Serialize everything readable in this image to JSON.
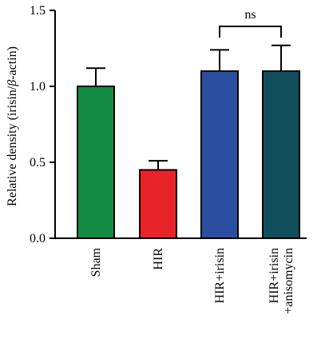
{
  "chart_data": {
    "type": "bar",
    "categories": [
      [
        "Sham"
      ],
      [
        "HIR"
      ],
      [
        "HIR+irisin"
      ],
      [
        "HIR+irisin",
        "+anisomycin"
      ]
    ],
    "values": [
      1.0,
      0.45,
      1.1,
      1.1
    ],
    "errors": [
      0.12,
      0.06,
      0.14,
      0.17
    ],
    "colors": [
      "#138a43",
      "#e8242a",
      "#2b4ea0",
      "#124f5c"
    ],
    "ylabel_main": "Relative density (irisin/",
    "ylabel_beta": "β",
    "ylabel_end": "-actin)",
    "ylim": [
      0,
      1.5
    ],
    "yticks": [
      "0.0",
      "0.5",
      "1.0",
      "1.5"
    ],
    "yticks_values": [
      0,
      0.5,
      1.0,
      1.5
    ],
    "grid": false,
    "annotation": {
      "text": "ns",
      "from_index": 2,
      "to_index": 3
    }
  }
}
